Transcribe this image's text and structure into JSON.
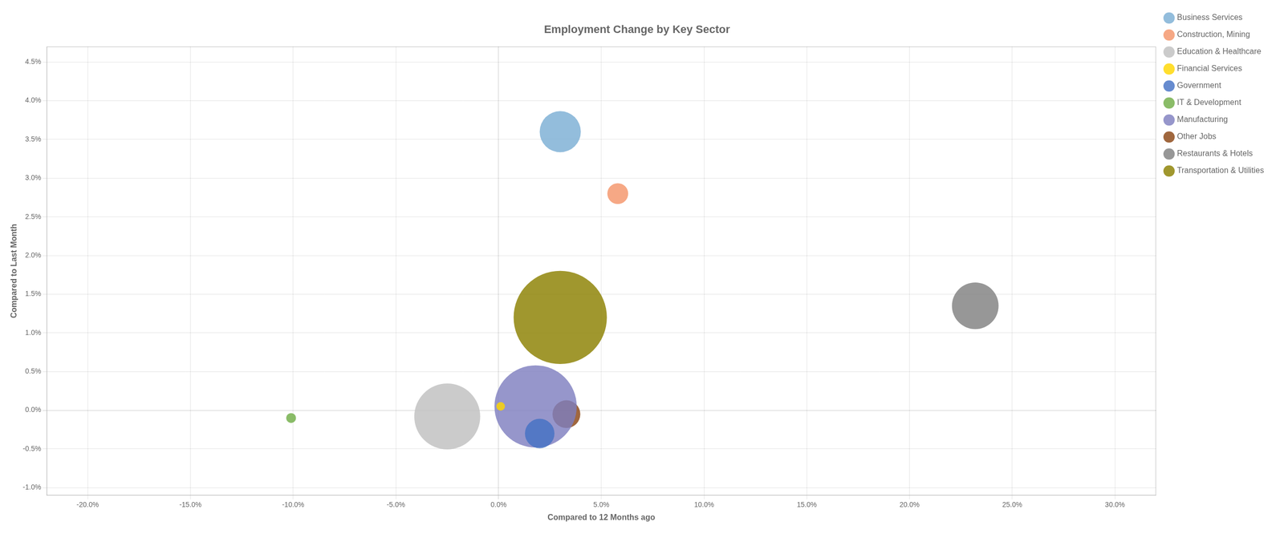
{
  "chart_data": {
    "type": "bubble",
    "title": "Employment Change by Key Sector",
    "xlabel": "Compared to 12 Months ago",
    "ylabel": "Compared to Last Month",
    "xlim": [
      -0.22,
      0.32
    ],
    "ylim": [
      -0.011,
      0.047
    ],
    "xticks": [
      {
        "value": -0.2,
        "label": "-20.0%"
      },
      {
        "value": -0.15,
        "label": "-15.0%"
      },
      {
        "value": -0.1,
        "label": "-10.0%"
      },
      {
        "value": -0.05,
        "label": "-5.0%"
      },
      {
        "value": 0.0,
        "label": "0.0%"
      },
      {
        "value": 0.05,
        "label": "5.0%"
      },
      {
        "value": 0.1,
        "label": "10.0%"
      },
      {
        "value": 0.15,
        "label": "15.0%"
      },
      {
        "value": 0.2,
        "label": "20.0%"
      },
      {
        "value": 0.25,
        "label": "25.0%"
      },
      {
        "value": 0.3,
        "label": "30.0%"
      }
    ],
    "yticks": [
      {
        "value": -0.01,
        "label": "-1.0%"
      },
      {
        "value": -0.005,
        "label": "-0.5%"
      },
      {
        "value": 0.0,
        "label": "0.0%"
      },
      {
        "value": 0.005,
        "label": "0.5%"
      },
      {
        "value": 0.01,
        "label": "1.0%"
      },
      {
        "value": 0.015,
        "label": "1.5%"
      },
      {
        "value": 0.02,
        "label": "2.0%"
      },
      {
        "value": 0.025,
        "label": "2.5%"
      },
      {
        "value": 0.03,
        "label": "3.0%"
      },
      {
        "value": 0.035,
        "label": "3.5%"
      },
      {
        "value": 0.04,
        "label": "4.0%"
      },
      {
        "value": 0.045,
        "label": "4.5%"
      }
    ],
    "grid": true,
    "legend": "right",
    "series": [
      {
        "name": "Business Services",
        "color": "#7BAFD4",
        "x": [
          0.03
        ],
        "values": [
          0.036
        ],
        "size": [
          3500
        ]
      },
      {
        "name": "Construction, Mining",
        "color": "#F4956A",
        "x": [
          0.058
        ],
        "values": [
          0.028
        ],
        "size": [
          900
        ]
      },
      {
        "name": "Education & Healthcare",
        "color": "#C0C0C0",
        "x": [
          -0.025
        ],
        "values": [
          -0.0008
        ],
        "size": [
          9000
        ]
      },
      {
        "name": "Financial Services",
        "color": "#FFD700",
        "x": [
          0.001
        ],
        "values": [
          0.0005
        ],
        "size": [
          150
        ]
      },
      {
        "name": "Government",
        "color": "#4472C4",
        "x": [
          0.02
        ],
        "values": [
          -0.003
        ],
        "size": [
          1800
        ]
      },
      {
        "name": "IT & Development",
        "color": "#70AD47",
        "x": [
          -0.101
        ],
        "values": [
          -0.001
        ],
        "size": [
          200
        ]
      },
      {
        "name": "Manufacturing",
        "color": "#7F7FBF",
        "x": [
          0.018
        ],
        "values": [
          0.0005
        ],
        "size": [
          14000
        ]
      },
      {
        "name": "Other Jobs",
        "color": "#8B4513",
        "x": [
          0.033
        ],
        "values": [
          -0.0005
        ],
        "size": [
          1600
        ]
      },
      {
        "name": "Restaurants & Hotels",
        "color": "#808080",
        "x": [
          0.232
        ],
        "values": [
          0.0135
        ],
        "size": [
          4500
        ]
      },
      {
        "name": "Transportation & Utilities",
        "color": "#8B8000",
        "x": [
          0.03
        ],
        "values": [
          0.012
        ],
        "size": [
          18000
        ]
      }
    ]
  }
}
